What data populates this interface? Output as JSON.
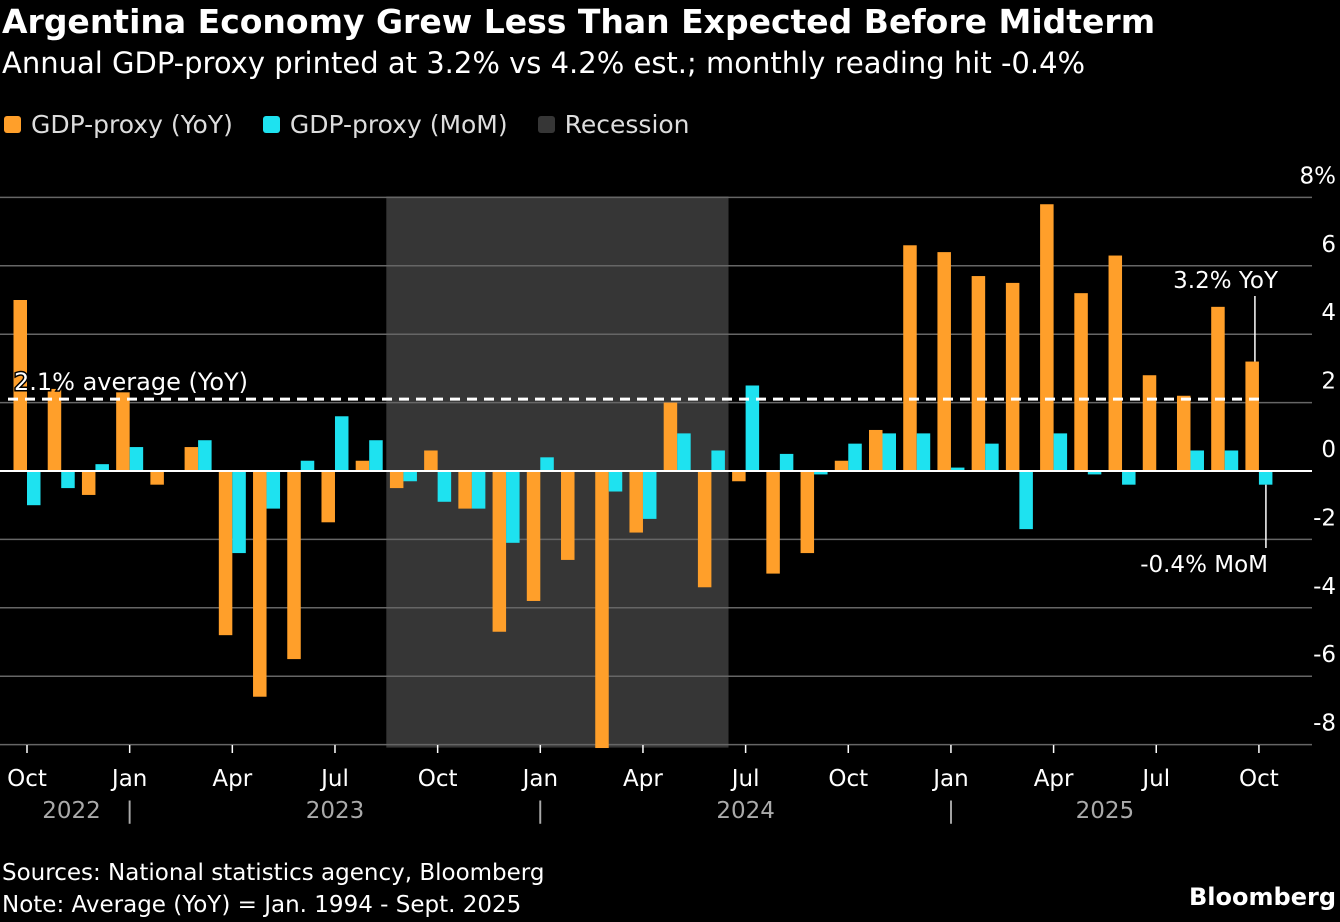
{
  "title": "Argentina Economy Grew Less Than Expected Before Midterm",
  "subtitle": "Annual GDP-proxy printed at 3.2% vs 4.2% est.; monthly reading hit -0.4%",
  "footer": {
    "sources": "Sources: National statistics agency, Bloomberg",
    "note": "Note: Average (YoY) = Jan. 1994 - Sept. 2025",
    "brand": "Bloomberg"
  },
  "chart_data": {
    "type": "bar",
    "title": "Argentina Economy Grew Less Than Expected Before Midterm",
    "colors": {
      "yoy": "#ff9f2a",
      "mom": "#1ee2f0",
      "recession": "#363636",
      "background": "#000000"
    },
    "legend": {
      "placement": "top-left",
      "entries": [
        "GDP-proxy (YoY)",
        "GDP-proxy (MoM)",
        "Recession"
      ]
    },
    "categories": [
      "Oct 2022",
      "Nov 2022",
      "Dec 2022",
      "Jan 2023",
      "Feb 2023",
      "Mar 2023",
      "Apr 2023",
      "May 2023",
      "Jun 2023",
      "Jul 2023",
      "Aug 2023",
      "Sep 2023",
      "Oct 2023",
      "Nov 2023",
      "Dec 2023",
      "Jan 2024",
      "Feb 2024",
      "Mar 2024",
      "Apr 2024",
      "May 2024",
      "Jun 2024",
      "Jul 2024",
      "Aug 2024",
      "Sep 2024",
      "Oct 2024",
      "Nov 2024",
      "Dec 2024",
      "Jan 2025",
      "Feb 2025",
      "Mar 2025",
      "Apr 2025",
      "May 2025",
      "Jun 2025",
      "Jul 2025",
      "Aug 2025",
      "Sep 2025",
      "Oct 2025"
    ],
    "series": [
      {
        "name": "GDP-proxy (YoY)",
        "values": [
          5.0,
          2.4,
          -0.7,
          2.3,
          -0.4,
          0.7,
          -4.8,
          -6.6,
          -5.5,
          -1.5,
          0.3,
          -0.5,
          0.6,
          -1.1,
          -4.7,
          -3.8,
          -2.6,
          -8.1,
          -1.8,
          2.0,
          -3.4,
          -0.3,
          -3.0,
          -2.4,
          0.3,
          1.2,
          6.6,
          6.4,
          5.7,
          5.5,
          7.8,
          5.2,
          6.3,
          2.8,
          2.2,
          4.8,
          3.2
        ]
      },
      {
        "name": "GDP-proxy (MoM)",
        "values": [
          -1.0,
          -0.5,
          0.2,
          0.7,
          0.0,
          0.9,
          -2.4,
          -1.1,
          0.3,
          1.6,
          0.9,
          -0.3,
          -0.9,
          -1.1,
          -2.1,
          0.4,
          0.0,
          -0.6,
          -1.4,
          1.1,
          0.6,
          2.5,
          0.5,
          -0.1,
          0.8,
          1.1,
          1.1,
          0.1,
          0.8,
          -1.7,
          1.1,
          -0.1,
          -0.4,
          0.0,
          0.6,
          0.6,
          -0.4
        ]
      }
    ],
    "recession": {
      "start": "Sep 2023",
      "end": "Jun 2024"
    },
    "average_line": {
      "value": 2.1,
      "label": "2.1% average (YoY)"
    },
    "annotations": [
      {
        "text": "3.2% YoY",
        "category": "Oct 2025",
        "series": "GDP-proxy (YoY)"
      },
      {
        "text": "-0.4% MoM",
        "category": "Oct 2025",
        "series": "GDP-proxy (MoM)"
      }
    ],
    "y_axis": {
      "ylim": [
        -8,
        8
      ],
      "ticks": [
        8,
        6,
        4,
        2,
        0,
        -2,
        -4,
        -6,
        -8
      ],
      "tick_labels": [
        "8%",
        "6",
        "4",
        "2",
        "0",
        "-2",
        "-4",
        "-6",
        "-8"
      ],
      "position": "right",
      "grid": true
    },
    "x_axis": {
      "tick_labels": [
        {
          "label": "Oct",
          "index": 0
        },
        {
          "label": "Jan",
          "index": 3
        },
        {
          "label": "Apr",
          "index": 6
        },
        {
          "label": "Jul",
          "index": 9
        },
        {
          "label": "Oct",
          "index": 12
        },
        {
          "label": "Jan",
          "index": 15
        },
        {
          "label": "Apr",
          "index": 18
        },
        {
          "label": "Jul",
          "index": 21
        },
        {
          "label": "Oct",
          "index": 24
        },
        {
          "label": "Jan",
          "index": 27
        },
        {
          "label": "Apr",
          "index": 30
        },
        {
          "label": "Jul",
          "index": 33
        },
        {
          "label": "Oct",
          "index": 36
        }
      ],
      "year_labels": [
        {
          "label": "2022",
          "index": 1.3
        },
        {
          "label": "2023",
          "index": 9
        },
        {
          "label": "2024",
          "index": 21
        },
        {
          "label": "2025",
          "index": 31.5
        }
      ],
      "year_separators": [
        3,
        15,
        27
      ],
      "separator_glyph": "|"
    }
  }
}
